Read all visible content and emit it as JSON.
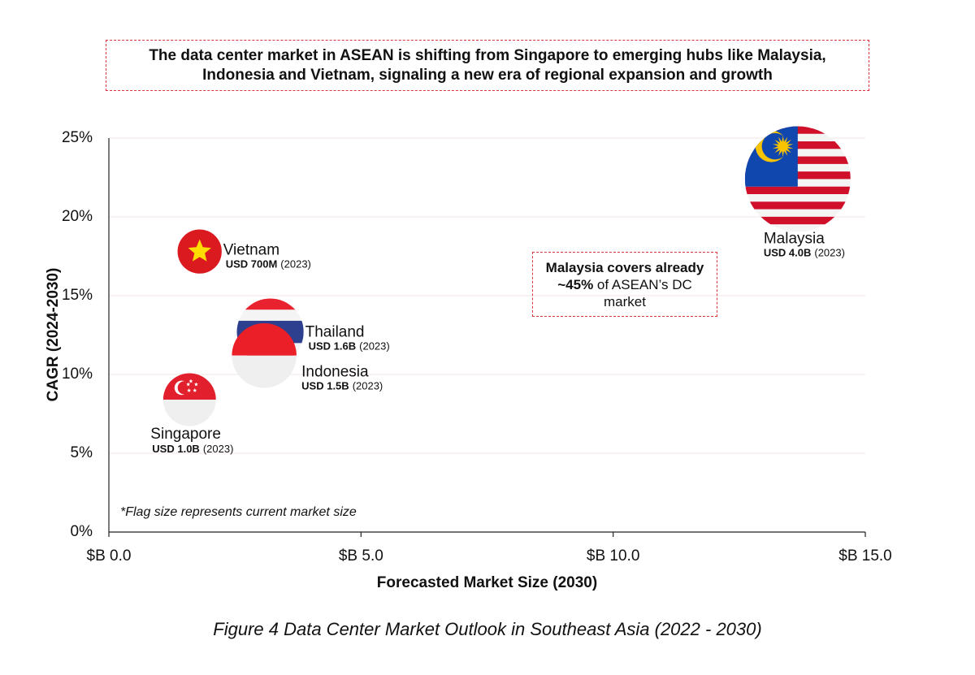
{
  "chart_data": {
    "type": "bubble",
    "headline": "The data center market in ASEAN is shifting from Singapore to emerging hubs like Malaysia, Indonesia and Vietnam, signaling a new era of regional expansion and growth",
    "x_label": "Forecasted Market Size (2030)",
    "y_label": "CAGR (2024-2030)",
    "annotation": {
      "bold": "Malaysia covers already ~45%",
      "rest": "of ASEAN’s DC market"
    },
    "note": "*Flag size represents current market size",
    "caption": "Figure 4 Data Center Market Outlook in Southeast Asia (2022 - 2030)",
    "labels": [
      "Malaysia",
      "Vietnam",
      "Thailand",
      "Indonesia",
      "Singapore"
    ],
    "x": [
      13.66,
      1.8,
      3.2,
      3.08,
      1.6
    ],
    "values": [
      22.4,
      17.8,
      12.7,
      11.2,
      8.4
    ],
    "sizes": [
      4.0,
      0.7,
      1.6,
      1.5,
      1.0
    ],
    "size_labels": [
      "USD 4.0B",
      "USD 700M",
      "USD 1.6B",
      "USD 1.5B",
      "USD 1.0B"
    ],
    "size_dates": [
      "(2023)",
      "(2023)",
      "(2023)",
      "(2023)",
      "(2023)"
    ],
    "xlim": [
      0,
      15
    ],
    "ylim": [
      0,
      25
    ],
    "xticks": [
      {
        "value": 0,
        "label": "$B 0.0"
      },
      {
        "value": 5,
        "label": "$B 5.0"
      },
      {
        "value": 10,
        "label": "$B 10.0"
      },
      {
        "value": 15,
        "label": "$B 15.0"
      }
    ],
    "yticks": [
      {
        "value": 0,
        "label": "0%"
      },
      {
        "value": 5,
        "label": "5%"
      },
      {
        "value": 10,
        "label": "10%"
      },
      {
        "value": 15,
        "label": "15%"
      },
      {
        "value": 20,
        "label": "20%"
      },
      {
        "value": 25,
        "label": "25%"
      }
    ],
    "grid": true
  }
}
